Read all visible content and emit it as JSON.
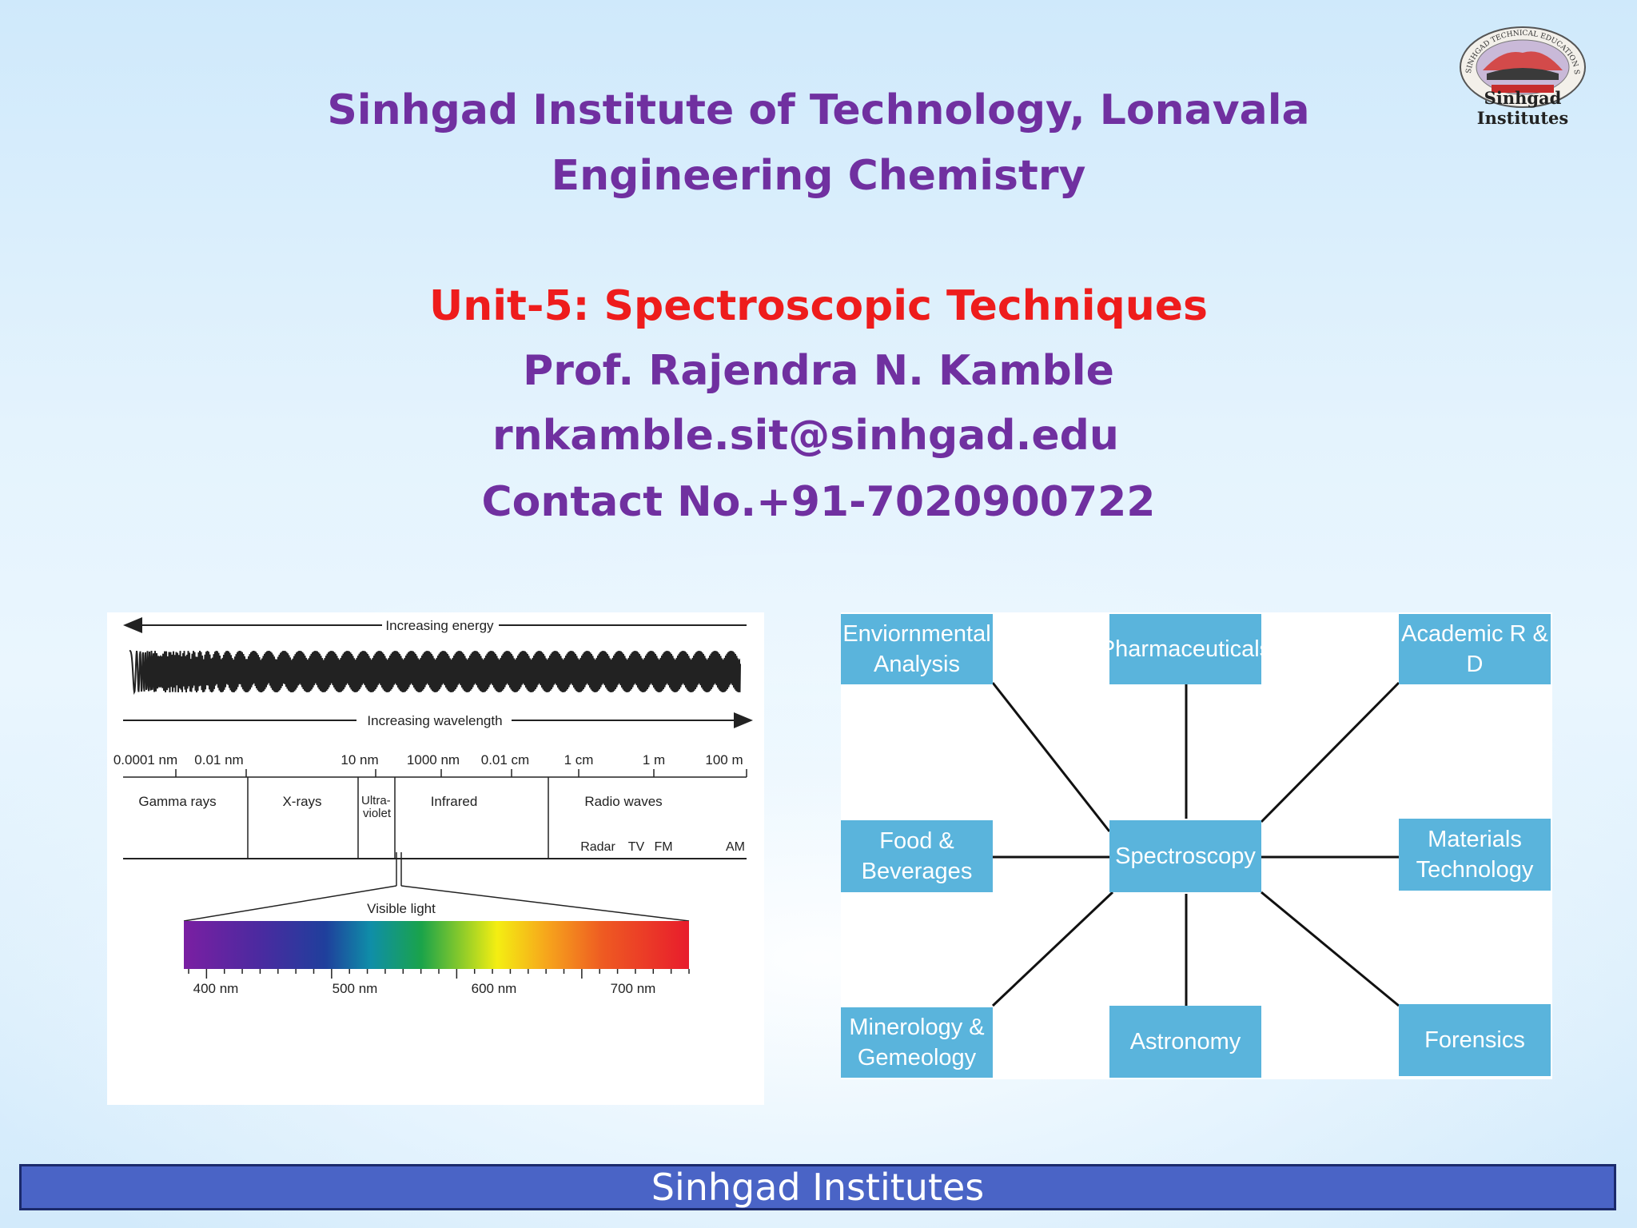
{
  "header": {
    "institute": "Sinhgad Institute of Technology, Lonavala",
    "subject": "Engineering Chemistry"
  },
  "details": {
    "unit": "Unit-5: Spectroscopic Techniques",
    "professor": "Prof. Rajendra N. Kamble",
    "email": "rnkamble.sit@sinhgad.edu",
    "contact": "Contact No.+91-7020900722"
  },
  "logo": {
    "caption": "Sinhgad Institutes",
    "arc_text": "SINHGAD TECHNICAL EDUCATION SOCIETY, PUNE"
  },
  "spectrum": {
    "energy_label": "Increasing energy",
    "wavelength_label": "Increasing wavelength",
    "scale_labels": [
      "0.0001 nm",
      "0.01 nm",
      "10 nm",
      "1000 nm",
      "0.01 cm",
      "1 cm",
      "1 m",
      "100 m"
    ],
    "regions": [
      "Gamma rays",
      "X-rays",
      "Ultra-",
      "violet",
      "Infrared",
      "Radio waves"
    ],
    "radio_bands": [
      "Radar",
      "TV",
      "FM",
      "AM"
    ],
    "visible_label": "Visible light",
    "visible_ticks": [
      "400 nm",
      "500 nm",
      "600 nm",
      "700 nm"
    ]
  },
  "applications": {
    "center": "Spectroscopy",
    "env_line1": "Enviornmental",
    "env_line2": "Analysis",
    "pharma": "Pharmaceuticals",
    "academic": "Academic R & D",
    "food_line1": "Food &",
    "food_line2": "Beverages",
    "materials_line1": "Materials",
    "materials_line2": "Technology",
    "mineral_line1": "Minerology &",
    "mineral_line2": "Gemeology",
    "astronomy": "Astronomy",
    "forensics": "Forensics",
    "box_color": "#5ab4dc"
  },
  "footer": {
    "label": "Sinhgad Institutes"
  },
  "colors": {
    "title_purple": "#7030a0",
    "unit_red": "#ee1c1c",
    "footer_bar": "#4a64c6"
  }
}
